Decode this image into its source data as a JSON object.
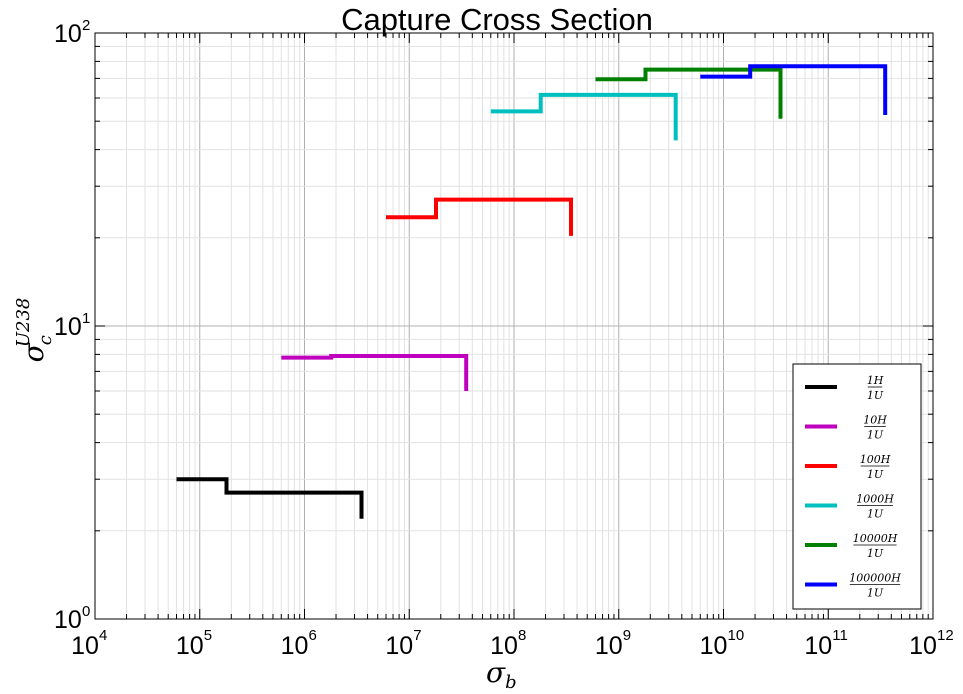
{
  "chart_data": {
    "type": "line",
    "title": "Capture Cross Section",
    "xlabel": "σ_b",
    "ylabel": "σ_c^U238",
    "xscale": "log",
    "yscale": "log",
    "xlim": [
      10000,
      1000000000000
    ],
    "ylim": [
      1,
      100
    ],
    "grid": true,
    "legend_position": "lower-right",
    "x_ticks": [
      {
        "base": "10",
        "exp": "4"
      },
      {
        "base": "10",
        "exp": "5"
      },
      {
        "base": "10",
        "exp": "6"
      },
      {
        "base": "10",
        "exp": "7"
      },
      {
        "base": "10",
        "exp": "8"
      },
      {
        "base": "10",
        "exp": "9"
      },
      {
        "base": "10",
        "exp": "10"
      },
      {
        "base": "10",
        "exp": "11"
      },
      {
        "base": "10",
        "exp": "12"
      }
    ],
    "y_ticks": [
      {
        "base": "10",
        "exp": "0"
      },
      {
        "base": "10",
        "exp": "1"
      },
      {
        "base": "10",
        "exp": "2"
      }
    ],
    "series": [
      {
        "name": "1H/1U",
        "num": "1H",
        "den": "1U",
        "color": "#000000",
        "x": [
          60000,
          180000,
          180000,
          3500000,
          3500000
        ],
        "y": [
          3.0,
          3.0,
          2.7,
          2.7,
          2.2
        ]
      },
      {
        "name": "10H/1U",
        "num": "10H",
        "den": "1U",
        "color": "#bf00bf",
        "x": [
          600000,
          1800000,
          1800000,
          35000000,
          35000000
        ],
        "y": [
          7.8,
          7.8,
          7.9,
          7.9,
          6.0
        ]
      },
      {
        "name": "100H/1U",
        "num": "100H",
        "den": "1U",
        "color": "#ff0000",
        "x": [
          6000000,
          18000000,
          18000000,
          350000000,
          350000000
        ],
        "y": [
          23.5,
          23.5,
          27.0,
          27.0,
          20.3
        ]
      },
      {
        "name": "1000H/1U",
        "num": "1000H",
        "den": "1U",
        "color": "#00bfbf",
        "x": [
          60000000,
          180000000,
          180000000,
          3500000000,
          3500000000
        ],
        "y": [
          54.0,
          54.0,
          61.5,
          61.5,
          43.0
        ]
      },
      {
        "name": "10000H/1U",
        "num": "10000H",
        "den": "1U",
        "color": "#008000",
        "x": [
          600000000,
          1800000000,
          1800000000,
          35000000000,
          35000000000
        ],
        "y": [
          69.5,
          69.5,
          75.0,
          75.0,
          51.0
        ]
      },
      {
        "name": "100000H/1U",
        "num": "100000H",
        "den": "1U",
        "color": "#0000ff",
        "x": [
          6000000000,
          18000000000,
          18000000000,
          350000000000,
          350000000000
        ],
        "y": [
          71.0,
          71.0,
          77.0,
          77.0,
          52.5
        ]
      }
    ]
  }
}
